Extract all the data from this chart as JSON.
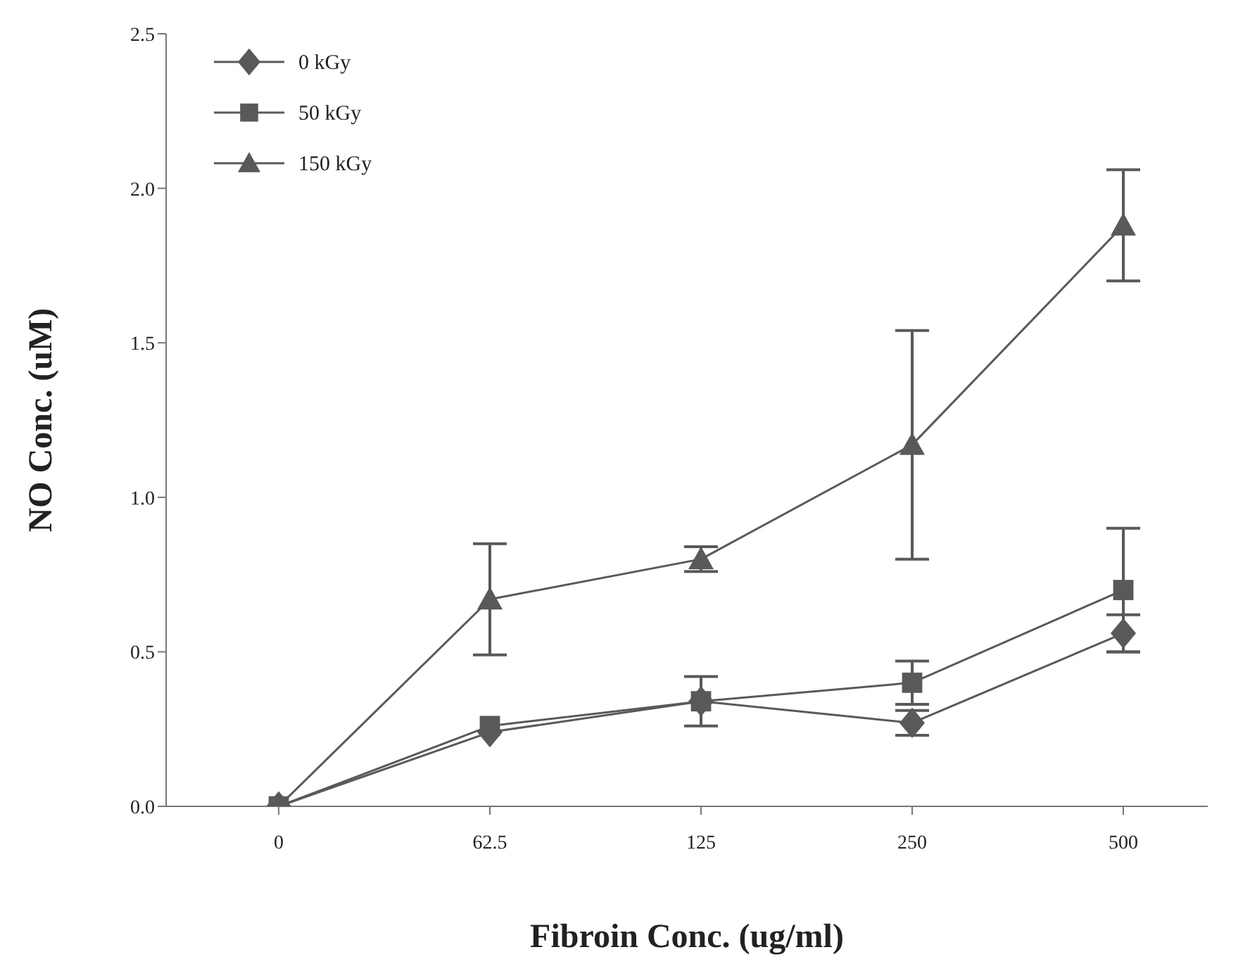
{
  "chart_data": {
    "type": "line",
    "xlabel": "Fibroin Conc. (ug/ml)",
    "ylabel": "NO Conc. (uM)",
    "categories": [
      "0",
      "62.5",
      "125",
      "250",
      "500"
    ],
    "ylim": [
      0,
      2.5
    ],
    "yticks": [
      {
        "value": 0,
        "label": "0.0"
      },
      {
        "value": 0.5,
        "label": "0.5"
      },
      {
        "value": 1,
        "label": "1.0"
      },
      {
        "value": 1.5,
        "label": "1.5"
      },
      {
        "value": 2,
        "label": "2.0"
      },
      {
        "value": 2.5,
        "label": "2.5"
      }
    ],
    "grid": false,
    "legend": "top left",
    "line_style": "solid",
    "series": [
      {
        "name": "0 kGy",
        "color": "#595959",
        "marker": "diamond",
        "values": [
          0,
          0.24,
          0.34,
          0.27,
          0.56
        ],
        "errors": [
          null,
          null,
          null,
          0.04,
          0.06
        ]
      },
      {
        "name": "50 kGy",
        "color": "#595959",
        "marker": "square",
        "values": [
          0,
          0.26,
          0.34,
          0.4,
          0.7
        ],
        "errors": [
          null,
          null,
          0.08,
          0.07,
          0.2
        ]
      },
      {
        "name": "150 kGy",
        "color": "#595959",
        "marker": "triangle",
        "values": [
          0,
          0.67,
          0.8,
          1.17,
          1.88
        ],
        "errors": [
          null,
          0.18,
          0.04,
          0.37,
          0.18
        ]
      }
    ]
  }
}
